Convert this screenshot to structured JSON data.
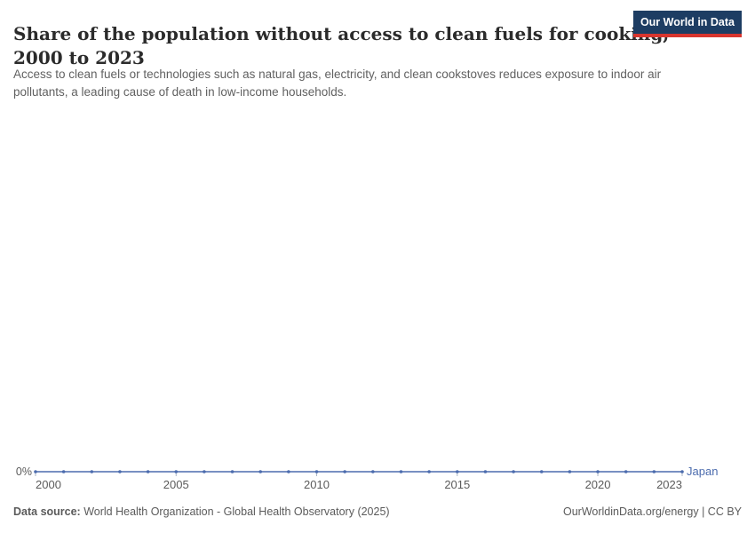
{
  "header": {
    "title": {
      "lines": [
        "Share of the population without access to clean fuels for cooking,",
        "2000 to 2023"
      ]
    },
    "subtitle": {
      "lines": [
        "Access to clean fuels or technologies such as natural gas, electricity, and clean cookstoves reduces exposure to indoor air",
        "pollutants, a leading cause of death in low-income households."
      ]
    },
    "logo": {
      "line1": "Our World",
      "line2": "in Data",
      "bg_color": "#1d3d63",
      "accent_color": "#d8352e"
    }
  },
  "chart_data": {
    "type": "line",
    "title": "Share of the population without access to clean fuels for cooking, 2000 to 2023",
    "x": [
      2000,
      2001,
      2002,
      2003,
      2004,
      2005,
      2006,
      2007,
      2008,
      2009,
      2010,
      2011,
      2012,
      2013,
      2014,
      2015,
      2016,
      2017,
      2018,
      2019,
      2020,
      2021,
      2022,
      2023
    ],
    "series": [
      {
        "name": "Japan",
        "color": "#4c6cae",
        "values": [
          0,
          0,
          0,
          0,
          0,
          0,
          0,
          0,
          0,
          0,
          0,
          0,
          0,
          0,
          0,
          0,
          0,
          0,
          0,
          0,
          0,
          0,
          0,
          0
        ]
      }
    ],
    "xlabel": "",
    "ylabel": "",
    "grid": false,
    "legend": "end-of-line-label",
    "y_axis": {
      "tick_labels": [
        "0%"
      ],
      "ylim": [
        0,
        0
      ]
    },
    "x_axis": {
      "range": [
        2000,
        2023
      ],
      "tick_years": [
        2000,
        2005,
        2010,
        2015,
        2020,
        2023
      ],
      "tick_color": "#a9b4c4"
    }
  },
  "footer": {
    "data_source_label": "Data source:",
    "data_source_text": " World Health Organization - Global Health Observatory (2025)",
    "right_text": "OurWorldinData.org/energy | CC BY"
  }
}
